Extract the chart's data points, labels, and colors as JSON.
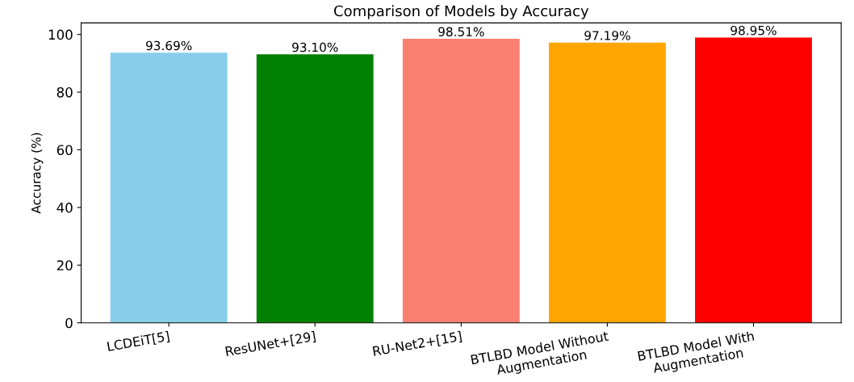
{
  "chart_data": {
    "type": "bar",
    "title": "Comparison of Models by Accuracy",
    "ylabel": "Accuracy (%)",
    "categories": [
      "LCDEiT[5]",
      "ResUNet+[29]",
      "RU-Net2+[15]",
      "BTLBD Model Without Augmentation",
      "BTLBD Model With Augmentation"
    ],
    "values": [
      93.69,
      93.1,
      98.51,
      97.19,
      98.95
    ],
    "colors": [
      "#87ceeb",
      "#008000",
      "#fa8072",
      "#ffa500",
      "#ff0000"
    ],
    "value_labels": [
      "93.69%",
      "93.10%",
      "98.51%",
      "97.19%",
      "98.95%"
    ],
    "ylim": [
      0,
      104
    ],
    "yticks": [
      0,
      20,
      40,
      60,
      80,
      100
    ],
    "grid": false,
    "legend": false
  }
}
